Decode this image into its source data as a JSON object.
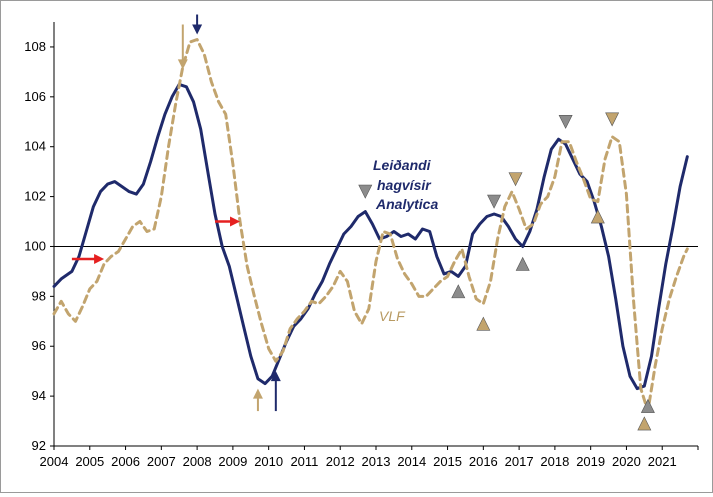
{
  "chart_data": {
    "type": "line",
    "title": "",
    "xlabel": "",
    "ylabel": "",
    "ylim": [
      92,
      109
    ],
    "xlim": [
      2004,
      2022
    ],
    "x_ticks": [
      "2004",
      "2005",
      "2006",
      "2007",
      "2008",
      "2009",
      "2010",
      "2011",
      "2012",
      "2013",
      "2014",
      "2015",
      "2016",
      "2017",
      "2018",
      "2019",
      "2020",
      "2021"
    ],
    "y_ticks": [
      "92",
      "94",
      "96",
      "98",
      "100",
      "102",
      "104",
      "106",
      "108"
    ],
    "reference_line": 100,
    "grid": false,
    "colors": {
      "series1": "#1f2a6b",
      "series2": "#c2a46e",
      "red_arrow": "#e52020",
      "marker_gray": "#8c8c8c",
      "marker_gold": "#c2a46e"
    },
    "series": [
      {
        "name": "Leiðandi hagvísir Analytica",
        "style": "solid",
        "points": [
          [
            2004.0,
            98.4
          ],
          [
            2004.2,
            98.7
          ],
          [
            2004.5,
            99.0
          ],
          [
            2004.7,
            99.6
          ],
          [
            2004.9,
            100.6
          ],
          [
            2005.1,
            101.6
          ],
          [
            2005.3,
            102.2
          ],
          [
            2005.5,
            102.5
          ],
          [
            2005.7,
            102.6
          ],
          [
            2005.9,
            102.4
          ],
          [
            2006.1,
            102.2
          ],
          [
            2006.3,
            102.1
          ],
          [
            2006.5,
            102.5
          ],
          [
            2006.7,
            103.4
          ],
          [
            2006.9,
            104.4
          ],
          [
            2007.1,
            105.3
          ],
          [
            2007.3,
            106.0
          ],
          [
            2007.5,
            106.5
          ],
          [
            2007.7,
            106.4
          ],
          [
            2007.9,
            105.8
          ],
          [
            2008.1,
            104.7
          ],
          [
            2008.3,
            103.0
          ],
          [
            2008.5,
            101.3
          ],
          [
            2008.7,
            100.0
          ],
          [
            2008.9,
            99.2
          ],
          [
            2009.1,
            98.0
          ],
          [
            2009.3,
            96.8
          ],
          [
            2009.5,
            95.6
          ],
          [
            2009.7,
            94.7
          ],
          [
            2009.9,
            94.5
          ],
          [
            2010.1,
            94.8
          ],
          [
            2010.3,
            95.5
          ],
          [
            2010.5,
            96.2
          ],
          [
            2010.7,
            96.8
          ],
          [
            2010.9,
            97.1
          ],
          [
            2011.1,
            97.5
          ],
          [
            2011.3,
            98.1
          ],
          [
            2011.5,
            98.6
          ],
          [
            2011.7,
            99.3
          ],
          [
            2011.9,
            99.9
          ],
          [
            2012.1,
            100.5
          ],
          [
            2012.3,
            100.8
          ],
          [
            2012.5,
            101.2
          ],
          [
            2012.7,
            101.4
          ],
          [
            2012.9,
            100.9
          ],
          [
            2013.1,
            100.3
          ],
          [
            2013.3,
            100.4
          ],
          [
            2013.5,
            100.6
          ],
          [
            2013.7,
            100.4
          ],
          [
            2013.9,
            100.5
          ],
          [
            2014.1,
            100.3
          ],
          [
            2014.3,
            100.7
          ],
          [
            2014.5,
            100.6
          ],
          [
            2014.7,
            99.6
          ],
          [
            2014.9,
            98.9
          ],
          [
            2015.1,
            99.0
          ],
          [
            2015.3,
            98.8
          ],
          [
            2015.5,
            99.2
          ],
          [
            2015.7,
            100.5
          ],
          [
            2015.9,
            100.9
          ],
          [
            2016.1,
            101.2
          ],
          [
            2016.3,
            101.3
          ],
          [
            2016.5,
            101.2
          ],
          [
            2016.7,
            100.8
          ],
          [
            2016.9,
            100.3
          ],
          [
            2017.1,
            100.0
          ],
          [
            2017.3,
            100.6
          ],
          [
            2017.5,
            101.5
          ],
          [
            2017.7,
            102.8
          ],
          [
            2017.9,
            103.9
          ],
          [
            2018.1,
            104.3
          ],
          [
            2018.3,
            104.1
          ],
          [
            2018.5,
            103.5
          ],
          [
            2018.7,
            102.9
          ],
          [
            2018.9,
            102.6
          ],
          [
            2019.1,
            101.8
          ],
          [
            2019.3,
            100.8
          ],
          [
            2019.5,
            99.6
          ],
          [
            2019.7,
            97.9
          ],
          [
            2019.9,
            96.0
          ],
          [
            2020.1,
            94.8
          ],
          [
            2020.3,
            94.3
          ],
          [
            2020.5,
            94.4
          ],
          [
            2020.7,
            95.6
          ],
          [
            2020.9,
            97.5
          ],
          [
            2021.1,
            99.3
          ],
          [
            2021.3,
            100.8
          ],
          [
            2021.5,
            102.4
          ],
          [
            2021.7,
            103.6
          ]
        ]
      },
      {
        "name": "VLF",
        "style": "dashed",
        "points": [
          [
            2004.0,
            97.3
          ],
          [
            2004.2,
            97.8
          ],
          [
            2004.4,
            97.3
          ],
          [
            2004.6,
            97.0
          ],
          [
            2004.8,
            97.6
          ],
          [
            2005.0,
            98.3
          ],
          [
            2005.2,
            98.6
          ],
          [
            2005.4,
            99.3
          ],
          [
            2005.6,
            99.6
          ],
          [
            2005.8,
            99.8
          ],
          [
            2006.0,
            100.3
          ],
          [
            2006.2,
            100.8
          ],
          [
            2006.4,
            101.0
          ],
          [
            2006.6,
            100.6
          ],
          [
            2006.8,
            100.7
          ],
          [
            2007.0,
            102.0
          ],
          [
            2007.2,
            104.0
          ],
          [
            2007.4,
            105.7
          ],
          [
            2007.6,
            107.2
          ],
          [
            2007.8,
            108.2
          ],
          [
            2008.0,
            108.3
          ],
          [
            2008.2,
            107.7
          ],
          [
            2008.4,
            106.6
          ],
          [
            2008.6,
            105.8
          ],
          [
            2008.8,
            105.3
          ],
          [
            2009.0,
            103.3
          ],
          [
            2009.2,
            101.0
          ],
          [
            2009.4,
            99.2
          ],
          [
            2009.6,
            98.0
          ],
          [
            2009.8,
            96.9
          ],
          [
            2010.0,
            95.9
          ],
          [
            2010.2,
            95.4
          ],
          [
            2010.4,
            95.8
          ],
          [
            2010.6,
            96.7
          ],
          [
            2010.8,
            97.1
          ],
          [
            2011.0,
            97.4
          ],
          [
            2011.2,
            97.8
          ],
          [
            2011.4,
            97.7
          ],
          [
            2011.6,
            98.0
          ],
          [
            2011.8,
            98.4
          ],
          [
            2012.0,
            99.0
          ],
          [
            2012.2,
            98.6
          ],
          [
            2012.4,
            97.4
          ],
          [
            2012.6,
            96.9
          ],
          [
            2012.8,
            97.5
          ],
          [
            2013.0,
            99.4
          ],
          [
            2013.2,
            100.6
          ],
          [
            2013.4,
            100.5
          ],
          [
            2013.6,
            99.5
          ],
          [
            2013.8,
            98.9
          ],
          [
            2014.0,
            98.5
          ],
          [
            2014.2,
            98.0
          ],
          [
            2014.4,
            98.0
          ],
          [
            2014.6,
            98.3
          ],
          [
            2014.8,
            98.6
          ],
          [
            2015.0,
            98.8
          ],
          [
            2015.2,
            99.4
          ],
          [
            2015.4,
            99.9
          ],
          [
            2015.6,
            98.8
          ],
          [
            2015.8,
            97.9
          ],
          [
            2016.0,
            97.7
          ],
          [
            2016.2,
            98.6
          ],
          [
            2016.4,
            100.3
          ],
          [
            2016.6,
            101.6
          ],
          [
            2016.8,
            102.2
          ],
          [
            2017.0,
            101.5
          ],
          [
            2017.2,
            100.7
          ],
          [
            2017.4,
            100.9
          ],
          [
            2017.6,
            101.7
          ],
          [
            2017.8,
            102.0
          ],
          [
            2018.0,
            102.8
          ],
          [
            2018.2,
            104.2
          ],
          [
            2018.4,
            104.2
          ],
          [
            2018.6,
            103.4
          ],
          [
            2018.8,
            102.7
          ],
          [
            2019.0,
            101.9
          ],
          [
            2019.2,
            101.8
          ],
          [
            2019.4,
            103.5
          ],
          [
            2019.6,
            104.4
          ],
          [
            2019.8,
            104.2
          ],
          [
            2020.0,
            102.1
          ],
          [
            2020.2,
            97.8
          ],
          [
            2020.4,
            94.3
          ],
          [
            2020.6,
            93.4
          ],
          [
            2020.8,
            95.2
          ],
          [
            2021.0,
            96.7
          ],
          [
            2021.2,
            97.9
          ],
          [
            2021.4,
            98.8
          ],
          [
            2021.6,
            99.6
          ],
          [
            2021.7,
            99.9
          ]
        ]
      }
    ],
    "annotations": [
      {
        "text": "Leiðandi",
        "color": "#1f2a6b"
      },
      {
        "text": "hagvísir",
        "color": "#1f2a6b"
      },
      {
        "text": "Analytica",
        "color": "#1f2a6b"
      },
      {
        "text": "VLF",
        "color": "#b89a62"
      }
    ],
    "markers": [
      {
        "kind": "vertical-arrow-down",
        "color": "#1f2a6b",
        "x": 2008.0,
        "y_from": 109.3,
        "y_to": 108.5
      },
      {
        "kind": "vertical-arrow-down",
        "color": "#c2a46e",
        "x": 2007.6,
        "y_from": 108.9,
        "y_to": 107.1
      },
      {
        "kind": "vertical-arrow-up",
        "color": "#1f2a6b",
        "x": 2010.2,
        "y_from": 93.4,
        "y_to": 95.0
      },
      {
        "kind": "vertical-arrow-up",
        "color": "#c2a46e",
        "x": 2009.7,
        "y_from": 93.4,
        "y_to": 94.3
      },
      {
        "kind": "horizontal-arrow-right",
        "color": "#e52020",
        "x_from": 2004.5,
        "x_to": 2005.4,
        "y": 99.5
      },
      {
        "kind": "horizontal-arrow-right",
        "color": "#e52020",
        "x_from": 2008.5,
        "x_to": 2009.2,
        "y": 101.0
      },
      {
        "kind": "triangle-down",
        "color": "#8c8c8c",
        "x": 2012.7,
        "y": 102.2
      },
      {
        "kind": "triangle-up",
        "color": "#8c8c8c",
        "x": 2015.3,
        "y": 98.2
      },
      {
        "kind": "triangle-down",
        "color": "#8c8c8c",
        "x": 2016.3,
        "y": 101.8
      },
      {
        "kind": "triangle-up",
        "color": "#8c8c8c",
        "x": 2017.1,
        "y": 99.3
      },
      {
        "kind": "triangle-down",
        "color": "#8c8c8c",
        "x": 2018.3,
        "y": 105.0
      },
      {
        "kind": "triangle-up",
        "color": "#8c8c8c",
        "x": 2020.6,
        "y": 93.6
      },
      {
        "kind": "triangle-up",
        "color": "#c2a46e",
        "x": 2016.0,
        "y": 96.9
      },
      {
        "kind": "triangle-down",
        "color": "#c2a46e",
        "x": 2016.9,
        "y": 102.7
      },
      {
        "kind": "triangle-up",
        "color": "#c2a46e",
        "x": 2019.2,
        "y": 101.2
      },
      {
        "kind": "triangle-down",
        "color": "#c2a46e",
        "x": 2019.6,
        "y": 105.1
      },
      {
        "kind": "triangle-up",
        "color": "#c2a46e",
        "x": 2020.5,
        "y": 92.9
      }
    ]
  }
}
